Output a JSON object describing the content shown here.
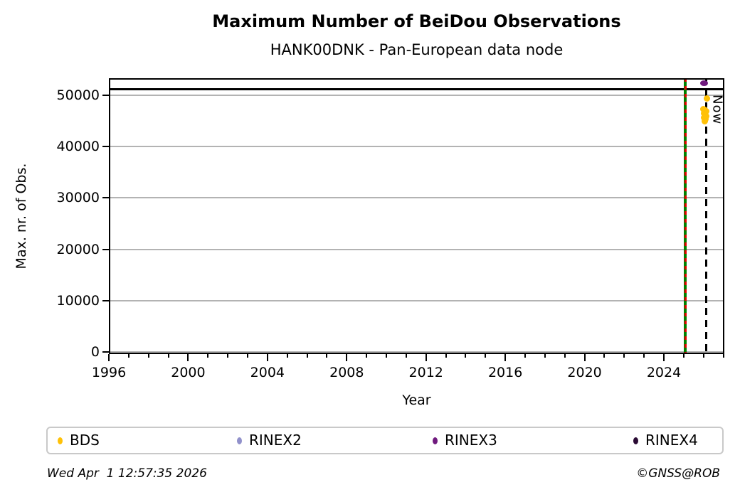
{
  "chart_data": {
    "type": "scatter",
    "title": "Maximum Number of BeiDou Observations",
    "subtitle": "HANK00DNK - Pan-European data node",
    "xlabel": "Year",
    "ylabel": "Max. nr. of Obs.",
    "xlim": [
      1996,
      2027.05
    ],
    "ylim": [
      -400,
      53300
    ],
    "x_major_ticks": [
      1996,
      2000,
      2004,
      2008,
      2012,
      2016,
      2020,
      2024
    ],
    "x_minor_tick_step": 1,
    "y_major_ticks": [
      0,
      10000,
      20000,
      30000,
      40000,
      50000
    ],
    "grid": {
      "horizontal": true,
      "vertical": false,
      "color": "#b3b3b3"
    },
    "axis_color": "#000000",
    "series": [
      {
        "name": "BDS",
        "color": "#ffc107",
        "marker": [
          9,
          9
        ],
        "points": [
          [
            2026.16,
            49400
          ],
          [
            2026.0,
            47300
          ],
          [
            2026.07,
            47100
          ],
          [
            2026.13,
            46800
          ],
          [
            2026.01,
            46500
          ],
          [
            2026.08,
            46200
          ],
          [
            2026.14,
            45900
          ],
          [
            2026.02,
            45600
          ],
          [
            2026.09,
            45300
          ],
          [
            2026.05,
            44900
          ]
        ]
      },
      {
        "name": "RINEX2",
        "color": "#9191cb",
        "marker": [
          9,
          9
        ],
        "points": []
      },
      {
        "name": "RINEX3",
        "color": "#701a7e",
        "marker": [
          11,
          8
        ],
        "points": [
          [
            2026.03,
            52350
          ]
        ]
      },
      {
        "name": "RINEX4",
        "color": "#2a0a33",
        "marker": [
          9,
          9
        ],
        "points": []
      }
    ],
    "hlines": [
      {
        "y": 51200,
        "color": "#000000",
        "style": "solid",
        "width": 2.5
      }
    ],
    "vlines": [
      {
        "x": 2025.08,
        "style": "solid-with-dashes",
        "color": "#008000",
        "dash_color": "#e60000",
        "label": ""
      },
      {
        "x": 2026.14,
        "style": "dashed",
        "color": "#000000",
        "label": "Now"
      }
    ],
    "legend": {
      "position": "bottom",
      "entries": [
        "BDS",
        "RINEX2",
        "RINEX3",
        "RINEX4"
      ]
    }
  },
  "footer": {
    "timestamp": "Wed Apr  1 12:57:35 2026",
    "credit": "©GNSS@ROB"
  }
}
